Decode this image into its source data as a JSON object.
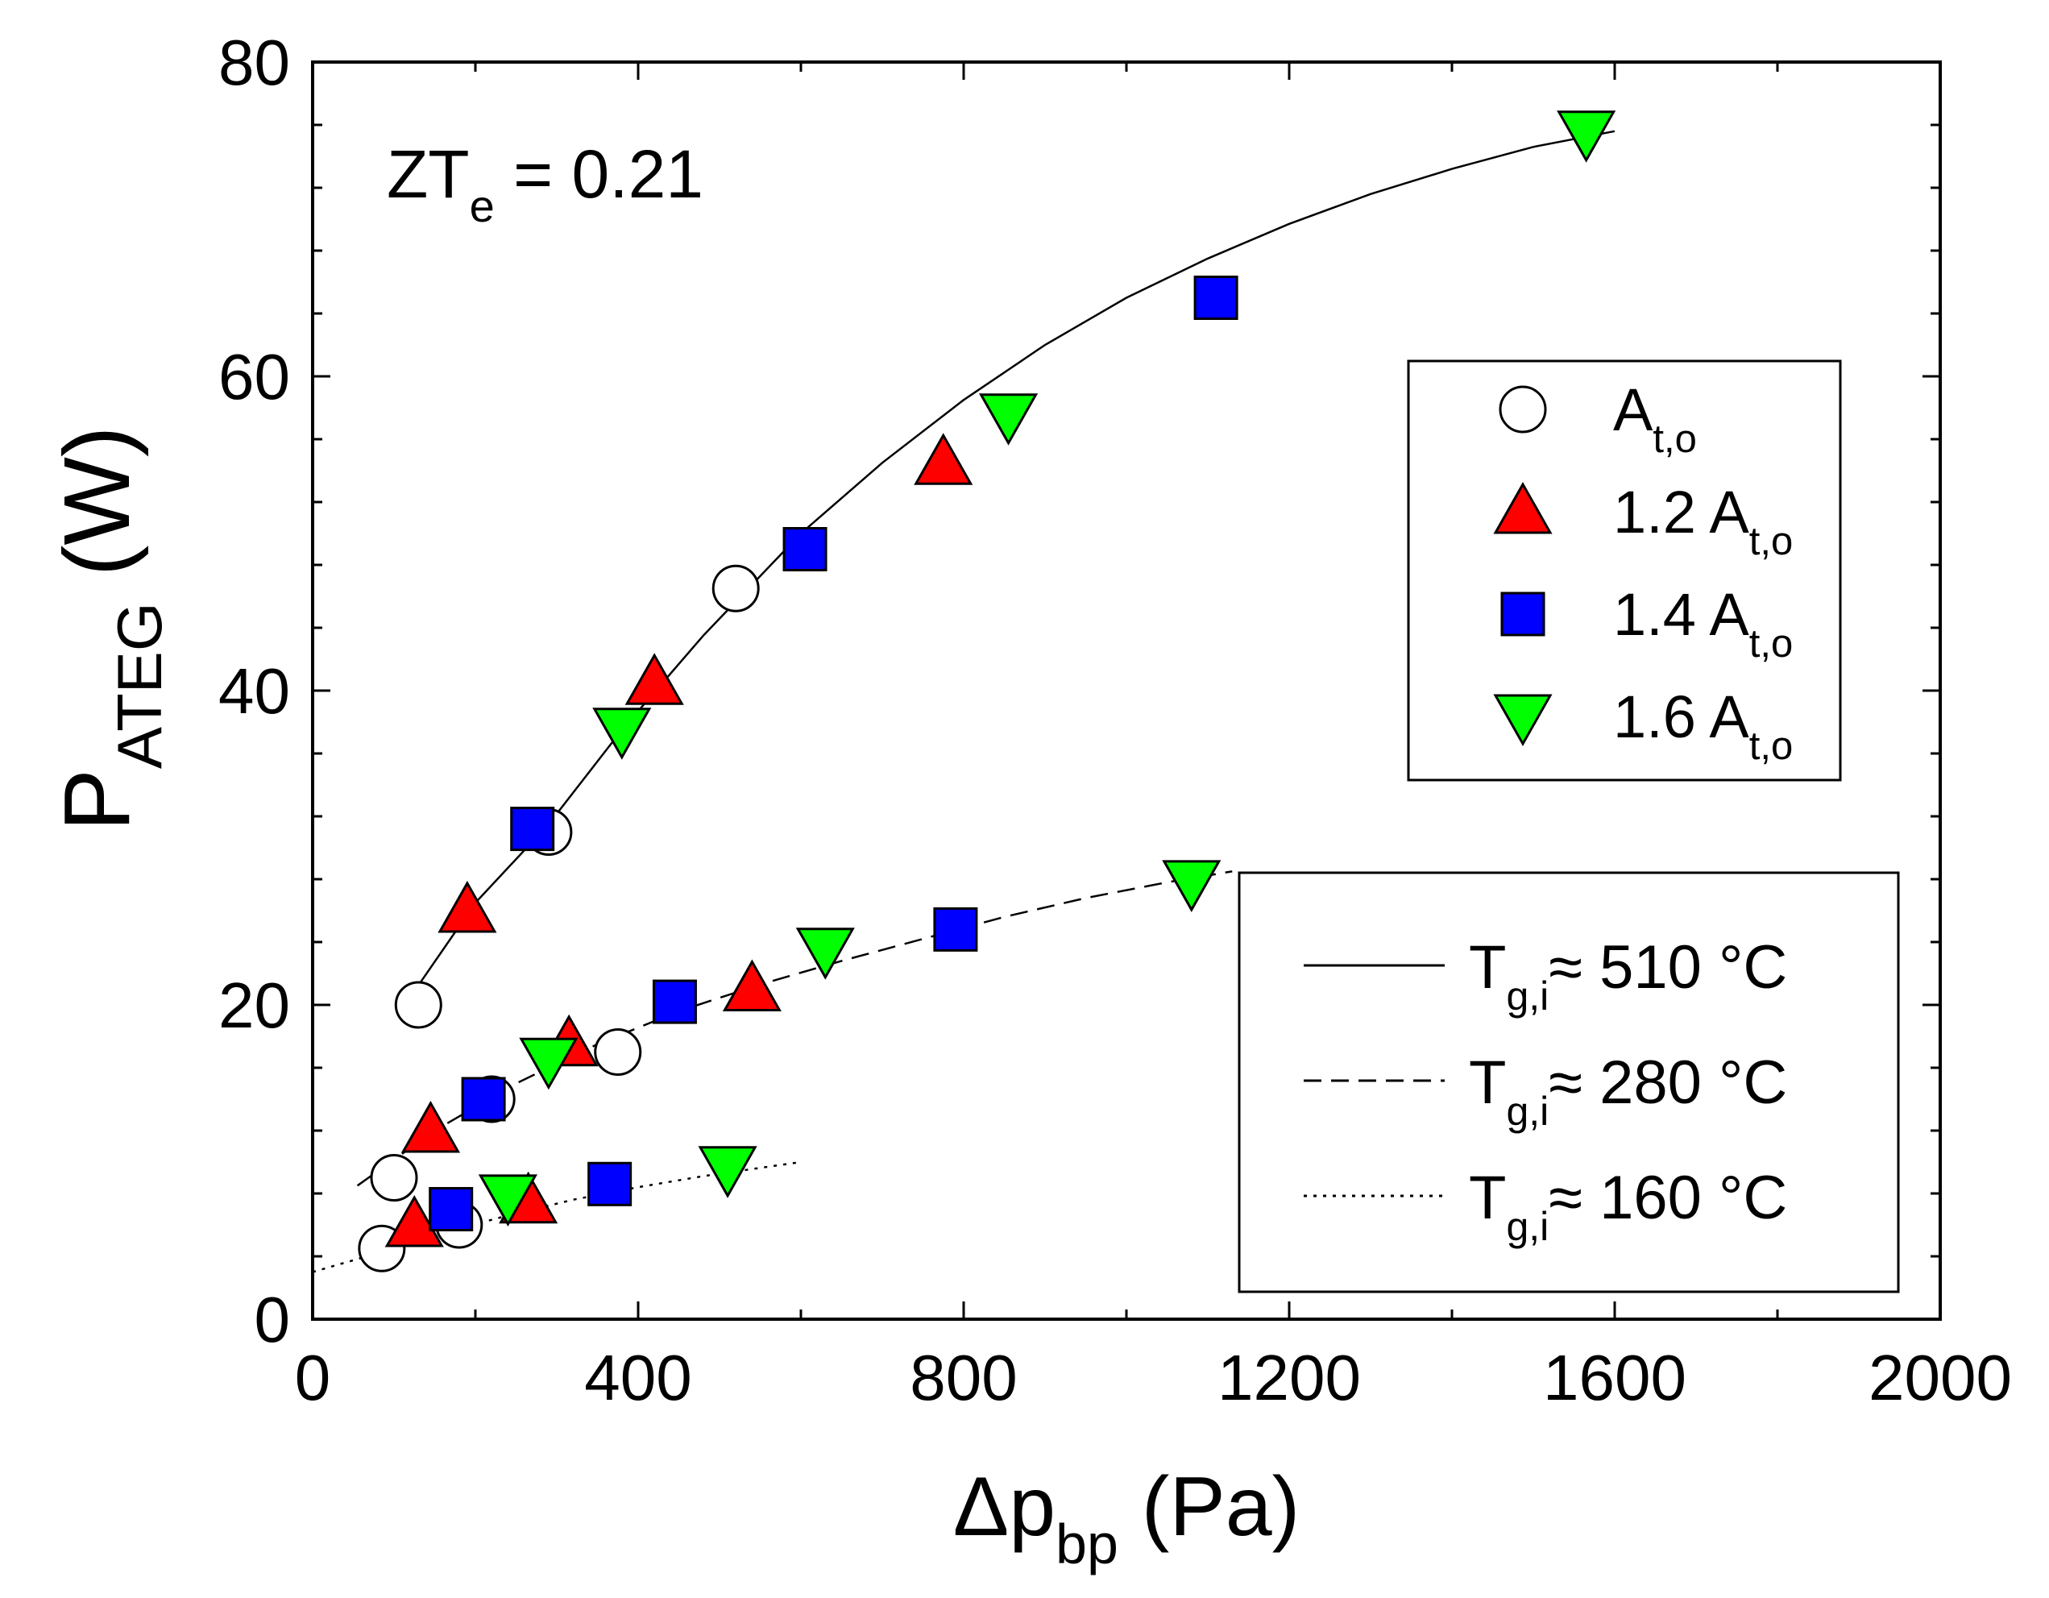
{
  "chart_data": {
    "type": "scatter",
    "title": "",
    "annotation": {
      "main": "ZT",
      "sub": "e",
      "rest": " = 0.21"
    },
    "xlabel": {
      "main": "Δp",
      "sub": "bp",
      "rest": " (Pa)"
    },
    "ylabel": {
      "main": "P",
      "sub": "ATEG",
      "rest": " (W)"
    },
    "xlim": [
      0,
      2000
    ],
    "ylim": [
      0,
      80
    ],
    "xticks": [
      0,
      400,
      800,
      1200,
      1600,
      2000
    ],
    "yticks": [
      0,
      20,
      40,
      60,
      80
    ],
    "xtick_labels": [
      "0",
      "400",
      "800",
      "1200",
      "1600",
      "2000"
    ],
    "ytick_labels": [
      "0",
      "20",
      "40",
      "60",
      "80"
    ],
    "series": [
      {
        "name": "A_t,o",
        "legend": {
          "main": "A",
          "sub": "t,o"
        },
        "marker": "circle",
        "color": "#ffffff",
        "points": [
          [
            130,
            20
          ],
          [
            290,
            31
          ],
          [
            520,
            46.5
          ],
          [
            100,
            9
          ],
          [
            220,
            14
          ],
          [
            375,
            17
          ],
          [
            85,
            4.5
          ],
          [
            180,
            6
          ]
        ]
      },
      {
        "name": "1.2 A_t,o",
        "legend": {
          "main": "1.2 A",
          "sub": "t,o"
        },
        "marker": "triangle-up",
        "color": "#ff0000",
        "points": [
          [
            190,
            26
          ],
          [
            420,
            40.5
          ],
          [
            775,
            54.5
          ],
          [
            145,
            12
          ],
          [
            315,
            17.5
          ],
          [
            540,
            21
          ],
          [
            125,
            6
          ],
          [
            265,
            7.5
          ]
        ]
      },
      {
        "name": "1.4 A_t,o",
        "legend": {
          "main": "1.4 A",
          "sub": "t,o"
        },
        "marker": "square",
        "color": "#0000ff",
        "points": [
          [
            270,
            31.2
          ],
          [
            605,
            49
          ],
          [
            1110,
            65
          ],
          [
            210,
            14
          ],
          [
            445,
            20.2
          ],
          [
            790,
            24.8
          ],
          [
            170,
            7
          ],
          [
            365,
            8.6
          ]
        ]
      },
      {
        "name": "1.6 A_t,o",
        "legend": {
          "main": "1.6 A",
          "sub": "t,o"
        },
        "marker": "triangle-down",
        "color": "#00ff00",
        "points": [
          [
            380,
            37.5
          ],
          [
            855,
            57.5
          ],
          [
            1565,
            75.5
          ],
          [
            290,
            16.5
          ],
          [
            630,
            23.5
          ],
          [
            1080,
            27.8
          ],
          [
            240,
            7.8
          ],
          [
            510,
            9.6
          ]
        ]
      }
    ],
    "fits": [
      {
        "name": "T_g,i ≈ 510 °C",
        "legend": {
          "main": "T",
          "sub": "g,i",
          "rest": "≈ 510 °C"
        },
        "style": "solid",
        "points": [
          [
            120,
            20.5
          ],
          [
            200,
            26.5
          ],
          [
            290,
            31.5
          ],
          [
            380,
            37.5
          ],
          [
            480,
            43.5
          ],
          [
            600,
            50
          ],
          [
            700,
            54.5
          ],
          [
            800,
            58.5
          ],
          [
            900,
            62
          ],
          [
            1000,
            65
          ],
          [
            1100,
            67.5
          ],
          [
            1200,
            69.7
          ],
          [
            1300,
            71.6
          ],
          [
            1400,
            73.2
          ],
          [
            1500,
            74.6
          ],
          [
            1600,
            75.6
          ]
        ]
      },
      {
        "name": "T_g,i ≈ 280 °C",
        "legend": {
          "main": "T",
          "sub": "g,i",
          "rest": "≈ 280 °C"
        },
        "style": "dashed",
        "points": [
          [
            55,
            8.5
          ],
          [
            150,
            12
          ],
          [
            250,
            15
          ],
          [
            350,
            17.5
          ],
          [
            450,
            19.6
          ],
          [
            550,
            21.3
          ],
          [
            650,
            22.8
          ],
          [
            750,
            24.2
          ],
          [
            850,
            25.6
          ],
          [
            950,
            26.8
          ],
          [
            1050,
            27.8
          ],
          [
            1130,
            28.5
          ]
        ]
      },
      {
        "name": "T_g,i ≈ 160 °C",
        "legend": {
          "main": "T",
          "sub": "g,i",
          "rest": "≈ 160 °C"
        },
        "style": "dotted",
        "points": [
          [
            0,
            3
          ],
          [
            80,
            4.2
          ],
          [
            160,
            5.5
          ],
          [
            240,
            6.6
          ],
          [
            320,
            7.6
          ],
          [
            400,
            8.4
          ],
          [
            480,
            9.1
          ],
          [
            560,
            9.7
          ],
          [
            600,
            10
          ]
        ]
      }
    ]
  }
}
